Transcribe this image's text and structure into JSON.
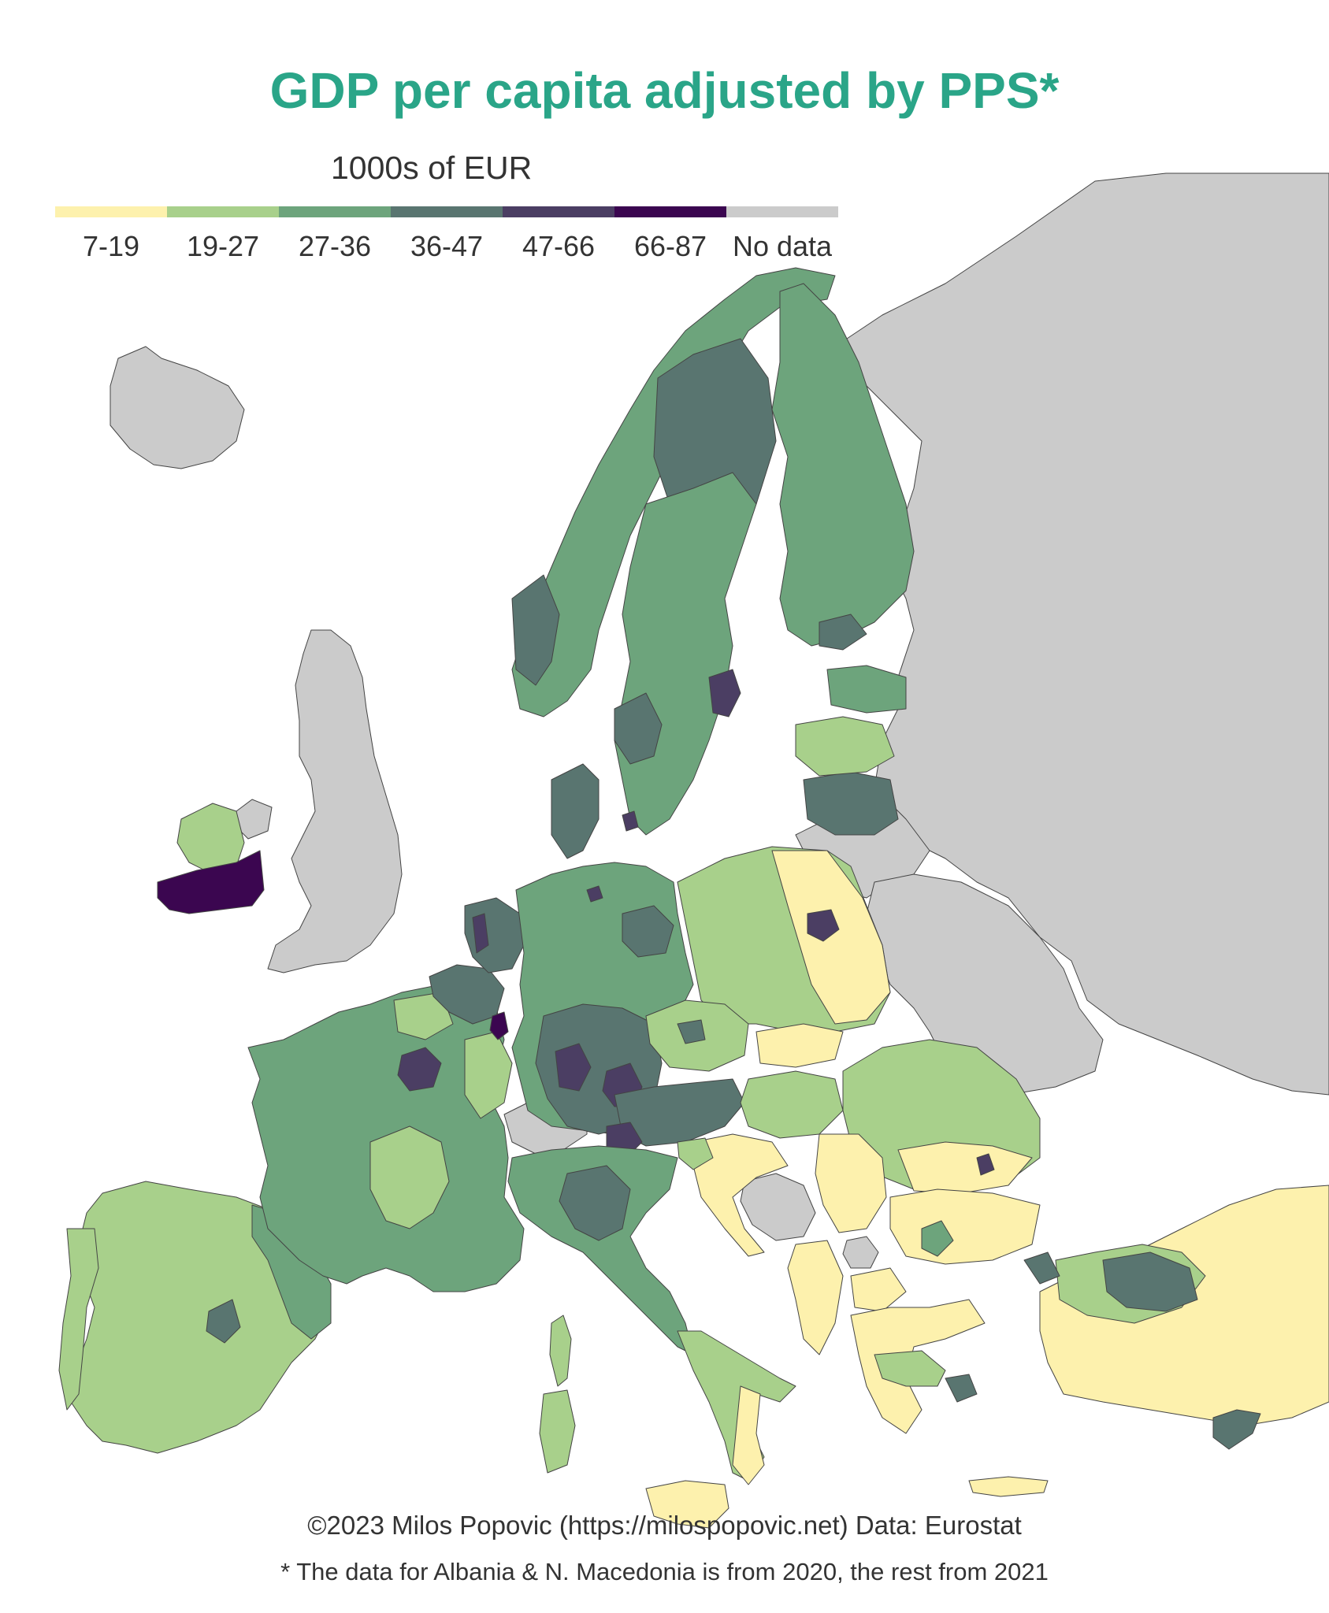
{
  "title": "GDP per capita adjusted by PPS*",
  "title_color": "#2aa588",
  "legend": {
    "title": "1000s of EUR",
    "classes": [
      {
        "label": "7-19",
        "color": "#fdf1ad"
      },
      {
        "label": "19-27",
        "color": "#a8d08b"
      },
      {
        "label": "27-36",
        "color": "#6da47c"
      },
      {
        "label": "36-47",
        "color": "#597570"
      },
      {
        "label": "47-66",
        "color": "#4b3e63"
      },
      {
        "label": "66-87",
        "color": "#3b0650"
      },
      {
        "label": "No data",
        "color": "#cbcbcb"
      }
    ]
  },
  "colors": {
    "sea": "#ffffff",
    "border": "#444444"
  },
  "credit": "©2023 Milos Popovic (https://milospopovic.net) Data: Eurostat",
  "footnote": "* The data for Albania & N. Macedonia is from 2020, the rest from 2021"
}
